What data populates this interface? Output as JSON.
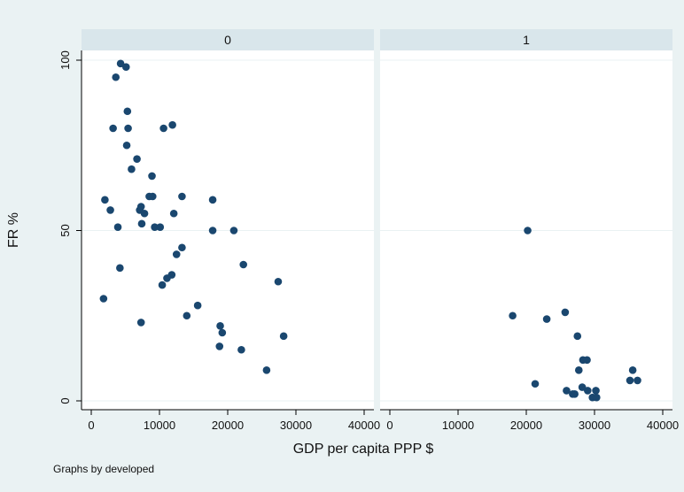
{
  "chart_data": {
    "type": "scatter",
    "xlabel": "GDP per capita PPP $",
    "ylabel": "FR %",
    "note": "Graphs by developed",
    "xlim": [
      0,
      40000
    ],
    "ylim": [
      0,
      100
    ],
    "xticks": [
      "0",
      "10000",
      "20000",
      "30000",
      "40000"
    ],
    "yticks": [
      "0",
      "50",
      "100"
    ],
    "grid": true,
    "colors": {
      "marker": "#1a476f",
      "strip": "#d9e6eb",
      "plot_bg": "#ffffff",
      "grid": "#eaf2f3"
    },
    "panels": [
      {
        "label": "0",
        "points": [
          [
            4300,
            99
          ],
          [
            5100,
            98
          ],
          [
            3600,
            95
          ],
          [
            5300,
            85
          ],
          [
            3200,
            80
          ],
          [
            5400,
            80
          ],
          [
            10600,
            80
          ],
          [
            11900,
            81
          ],
          [
            5200,
            75
          ],
          [
            6700,
            71
          ],
          [
            5900,
            68
          ],
          [
            8900,
            66
          ],
          [
            2000,
            59
          ],
          [
            8500,
            60
          ],
          [
            9000,
            60
          ],
          [
            13300,
            60
          ],
          [
            17800,
            59
          ],
          [
            2800,
            56
          ],
          [
            7300,
            57
          ],
          [
            7100,
            56
          ],
          [
            7800,
            55
          ],
          [
            12100,
            55
          ],
          [
            7400,
            52
          ],
          [
            3900,
            51
          ],
          [
            9300,
            51
          ],
          [
            10100,
            51
          ],
          [
            17800,
            50
          ],
          [
            20900,
            50
          ],
          [
            13300,
            45
          ],
          [
            12500,
            43
          ],
          [
            22300,
            40
          ],
          [
            4200,
            39
          ],
          [
            11800,
            37
          ],
          [
            11100,
            36
          ],
          [
            27400,
            35
          ],
          [
            10400,
            34
          ],
          [
            1800,
            30
          ],
          [
            15600,
            28
          ],
          [
            14000,
            25
          ],
          [
            7300,
            23
          ],
          [
            18900,
            22
          ],
          [
            19200,
            20
          ],
          [
            28200,
            19
          ],
          [
            18800,
            16
          ],
          [
            22000,
            15
          ],
          [
            25700,
            9
          ]
        ]
      },
      {
        "label": "1",
        "points": [
          [
            20200,
            50
          ],
          [
            18000,
            25
          ],
          [
            25700,
            26
          ],
          [
            23000,
            24
          ],
          [
            27500,
            19
          ],
          [
            28300,
            12
          ],
          [
            28900,
            12
          ],
          [
            27700,
            9
          ],
          [
            35600,
            9
          ],
          [
            35200,
            6
          ],
          [
            36300,
            6
          ],
          [
            21300,
            5
          ],
          [
            28200,
            4
          ],
          [
            25900,
            3
          ],
          [
            29000,
            3
          ],
          [
            30200,
            3
          ],
          [
            26800,
            2
          ],
          [
            27100,
            2
          ],
          [
            29700,
            1
          ],
          [
            30300,
            1
          ]
        ]
      }
    ]
  }
}
